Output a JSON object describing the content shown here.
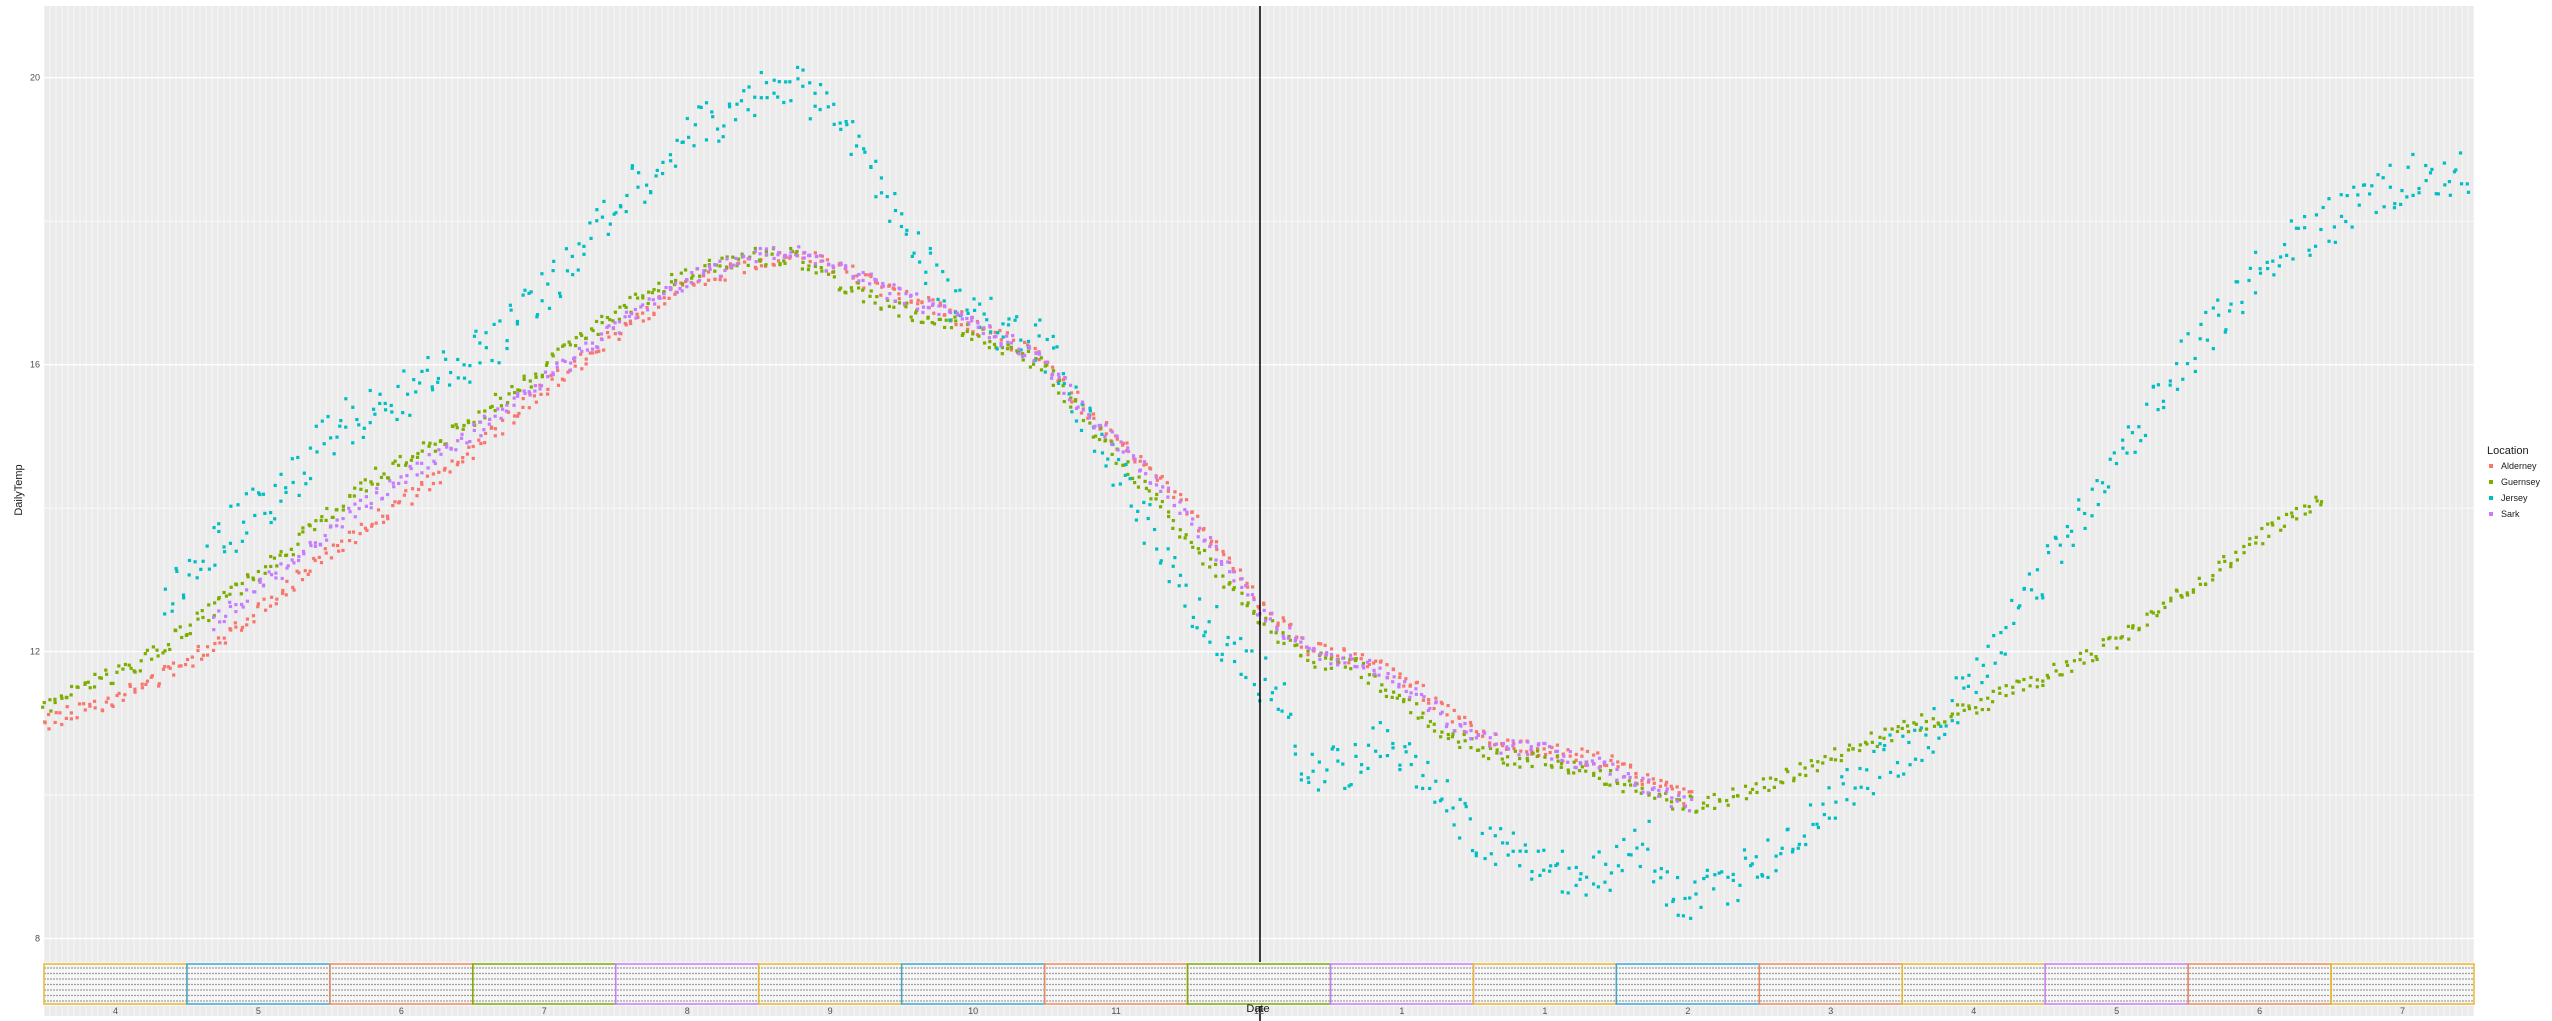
{
  "chart_data": {
    "type": "scatter",
    "title": "",
    "xlabel": "Date",
    "ylabel": "DailyTemp",
    "ylim": [
      7.7,
      21.0
    ],
    "yticks": [
      "20",
      "16",
      "12",
      "8"
    ],
    "ytick_values": [
      20,
      16,
      12,
      8
    ],
    "month_labels": [
      "4",
      "5",
      "6",
      "7",
      "8",
      "9",
      "10",
      "11",
      "12",
      "1",
      "1",
      "2",
      "3",
      "4",
      "5",
      "6",
      "7"
    ],
    "grid": true,
    "legend_title": "Location",
    "legend_position": "right",
    "vline_x": 0.5,
    "x_note": "x is the fraction of the Date axis; dense date tick labels are unreadable",
    "series": [
      {
        "name": "Alderney",
        "color": "#F8766D",
        "points": [
          [
            0.0,
            11.0
          ],
          [
            0.04,
            11.5
          ],
          [
            0.07,
            12.1
          ],
          [
            0.1,
            12.9
          ],
          [
            0.13,
            13.7
          ],
          [
            0.17,
            14.6
          ],
          [
            0.2,
            15.5
          ],
          [
            0.23,
            16.3
          ],
          [
            0.26,
            17.0
          ],
          [
            0.29,
            17.4
          ],
          [
            0.31,
            17.55
          ],
          [
            0.33,
            17.3
          ],
          [
            0.35,
            17.0
          ],
          [
            0.38,
            16.6
          ],
          [
            0.41,
            16.1
          ],
          [
            0.43,
            15.3
          ],
          [
            0.46,
            14.4
          ],
          [
            0.48,
            13.6
          ],
          [
            0.5,
            12.7
          ],
          [
            0.52,
            12.05
          ],
          [
            0.54,
            11.9
          ],
          [
            0.56,
            11.6
          ],
          [
            0.58,
            11.1
          ],
          [
            0.6,
            10.7
          ],
          [
            0.62,
            10.6
          ],
          [
            0.64,
            10.5
          ],
          [
            0.66,
            10.2
          ],
          [
            0.68,
            9.9
          ]
        ]
      },
      {
        "name": "Guernsey",
        "color": "#7CAE00",
        "points": [
          [
            0.0,
            11.25
          ],
          [
            0.04,
            11.85
          ],
          [
            0.07,
            12.6
          ],
          [
            0.1,
            13.4
          ],
          [
            0.13,
            14.3
          ],
          [
            0.17,
            15.1
          ],
          [
            0.2,
            15.8
          ],
          [
            0.23,
            16.6
          ],
          [
            0.26,
            17.2
          ],
          [
            0.29,
            17.5
          ],
          [
            0.31,
            17.5
          ],
          [
            0.33,
            17.1
          ],
          [
            0.35,
            16.8
          ],
          [
            0.38,
            16.5
          ],
          [
            0.41,
            16.0
          ],
          [
            0.43,
            15.2
          ],
          [
            0.46,
            14.0
          ],
          [
            0.48,
            13.2
          ],
          [
            0.5,
            12.45
          ],
          [
            0.52,
            11.9
          ],
          [
            0.54,
            11.8
          ],
          [
            0.56,
            11.3
          ],
          [
            0.58,
            10.8
          ],
          [
            0.6,
            10.5
          ],
          [
            0.62,
            10.5
          ],
          [
            0.64,
            10.3
          ],
          [
            0.66,
            10.0
          ],
          [
            0.68,
            9.85
          ],
          [
            0.7,
            10.05
          ],
          [
            0.72,
            10.3
          ],
          [
            0.74,
            10.6
          ],
          [
            0.76,
            10.85
          ],
          [
            0.78,
            11.1
          ],
          [
            0.8,
            11.3
          ],
          [
            0.82,
            11.6
          ],
          [
            0.84,
            11.9
          ],
          [
            0.86,
            12.3
          ],
          [
            0.88,
            12.8
          ],
          [
            0.9,
            13.3
          ],
          [
            0.92,
            13.8
          ],
          [
            0.94,
            14.2
          ]
        ]
      },
      {
        "name": "Jersey",
        "color": "#00BFC4",
        "points": [
          [
            0.05,
            12.7
          ],
          [
            0.07,
            13.5
          ],
          [
            0.1,
            14.3
          ],
          [
            0.12,
            15.1
          ],
          [
            0.15,
            15.6
          ],
          [
            0.17,
            16.0
          ],
          [
            0.19,
            16.4
          ],
          [
            0.21,
            17.2
          ],
          [
            0.23,
            18.0
          ],
          [
            0.25,
            18.7
          ],
          [
            0.27,
            19.3
          ],
          [
            0.29,
            19.7
          ],
          [
            0.31,
            19.9
          ],
          [
            0.33,
            19.3
          ],
          [
            0.35,
            18.2
          ],
          [
            0.37,
            17.0
          ],
          [
            0.39,
            16.6
          ],
          [
            0.41,
            16.3
          ],
          [
            0.43,
            15.3
          ],
          [
            0.45,
            14.0
          ],
          [
            0.47,
            12.8
          ],
          [
            0.49,
            12.0
          ],
          [
            0.51,
            11.3
          ],
          [
            0.52,
            10.3
          ],
          [
            0.54,
            10.4
          ],
          [
            0.55,
            10.7
          ],
          [
            0.56,
            10.5
          ],
          [
            0.58,
            9.8
          ],
          [
            0.6,
            9.2
          ],
          [
            0.62,
            8.9
          ],
          [
            0.64,
            8.9
          ],
          [
            0.66,
            9.3
          ],
          [
            0.67,
            8.6
          ],
          [
            0.68,
            8.6
          ],
          [
            0.7,
            8.9
          ],
          [
            0.72,
            9.4
          ],
          [
            0.74,
            10.1
          ],
          [
            0.76,
            10.5
          ],
          [
            0.78,
            11.0
          ],
          [
            0.8,
            11.9
          ],
          [
            0.82,
            12.9
          ],
          [
            0.84,
            14.0
          ],
          [
            0.86,
            15.0
          ],
          [
            0.88,
            16.0
          ],
          [
            0.9,
            16.9
          ],
          [
            0.92,
            17.6
          ],
          [
            0.94,
            18.0
          ],
          [
            0.96,
            18.4
          ],
          [
            0.98,
            18.7
          ],
          [
            1.0,
            18.7
          ]
        ]
      },
      {
        "name": "Sark",
        "color": "#C77CFF",
        "points": [
          [
            0.07,
            12.4
          ],
          [
            0.1,
            13.2
          ],
          [
            0.13,
            14.0
          ],
          [
            0.17,
            14.9
          ],
          [
            0.2,
            15.6
          ],
          [
            0.23,
            16.4
          ],
          [
            0.26,
            17.1
          ],
          [
            0.29,
            17.5
          ],
          [
            0.31,
            17.6
          ],
          [
            0.33,
            17.3
          ],
          [
            0.35,
            17.0
          ],
          [
            0.38,
            16.6
          ],
          [
            0.41,
            16.1
          ],
          [
            0.43,
            15.3
          ],
          [
            0.46,
            14.3
          ],
          [
            0.48,
            13.5
          ],
          [
            0.5,
            12.6
          ],
          [
            0.52,
            12.0
          ],
          [
            0.54,
            11.85
          ],
          [
            0.56,
            11.5
          ],
          [
            0.58,
            11.0
          ],
          [
            0.6,
            10.7
          ],
          [
            0.62,
            10.6
          ],
          [
            0.64,
            10.4
          ],
          [
            0.66,
            10.1
          ],
          [
            0.68,
            9.8
          ]
        ]
      }
    ]
  }
}
